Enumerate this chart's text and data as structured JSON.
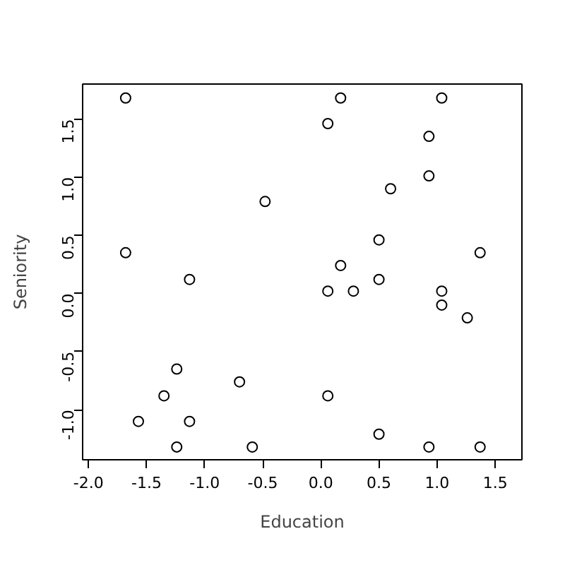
{
  "chart_data": {
    "type": "scatter",
    "xlabel": "Education",
    "ylabel": "Seniority",
    "x": [
      -1.68,
      0.17,
      1.04,
      0.06,
      0.93,
      0.93,
      0.6,
      -0.48,
      0.5,
      -1.68,
      1.37,
      0.17,
      -1.13,
      0.5,
      0.06,
      0.28,
      1.04,
      1.04,
      1.26,
      -1.24,
      -0.7,
      -1.35,
      0.06,
      -1.57,
      -1.13,
      0.5,
      -1.24,
      -0.59,
      0.93,
      1.37
    ],
    "values": [
      1.68,
      1.68,
      1.68,
      1.46,
      1.35,
      1.01,
      0.9,
      0.79,
      0.46,
      0.35,
      0.35,
      0.24,
      0.12,
      0.12,
      0.02,
      0.02,
      0.02,
      -0.1,
      -0.21,
      -0.65,
      -0.76,
      -0.88,
      -0.88,
      -1.1,
      -1.1,
      -1.21,
      -1.32,
      -1.32,
      -1.32,
      -1.32
    ],
    "color": "#000000",
    "marker": "circle",
    "xlim": [
      -2.05,
      1.73
    ],
    "ylim": [
      -1.43,
      1.8
    ],
    "xticks": [
      {
        "value": -2,
        "label": "-2.0"
      },
      {
        "value": -1.5,
        "label": "-1.5"
      },
      {
        "value": -1,
        "label": "-1.0"
      },
      {
        "value": -0.5,
        "label": "-0.5"
      },
      {
        "value": 0,
        "label": "0.0"
      },
      {
        "value": 0.5,
        "label": "0.5"
      },
      {
        "value": 1,
        "label": "1.0"
      },
      {
        "value": 1.5,
        "label": "1.5"
      }
    ],
    "yticks": [
      {
        "value": -1,
        "label": "-1.0"
      },
      {
        "value": -0.5,
        "label": "-0.5"
      },
      {
        "value": 0,
        "label": "0.0"
      },
      {
        "value": 0.5,
        "label": "0.5"
      },
      {
        "value": 1,
        "label": "1.0"
      },
      {
        "value": 1.5,
        "label": "1.5"
      }
    ],
    "grid": false
  }
}
